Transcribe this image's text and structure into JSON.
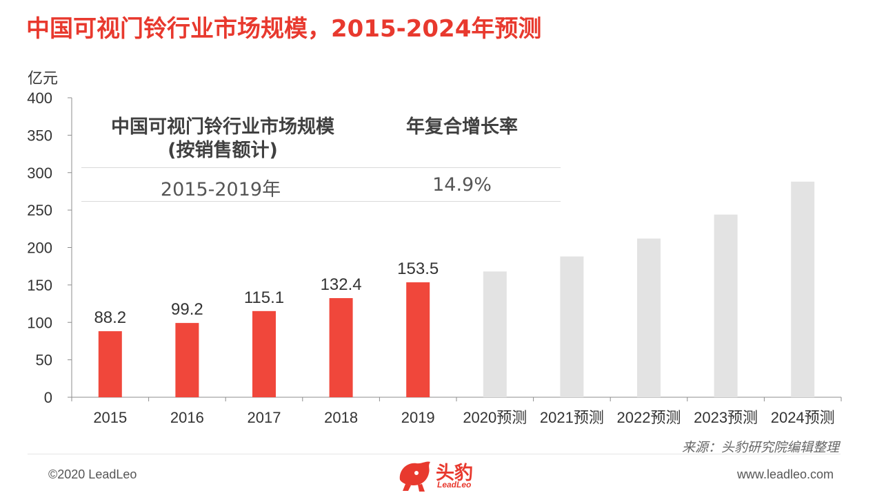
{
  "header": {
    "title": "中国可视门铃行业市场规模，2015-2024年预测"
  },
  "summary_table": {
    "col1_header_line1": "中国可视门铃行业市场规模",
    "col1_header_line2": "(按销售额计)",
    "col2_header": "年复合增长率",
    "period": "2015-2019年",
    "cagr": "14.9%"
  },
  "chart_data": {
    "type": "bar",
    "ylabel": "亿元",
    "ylim": [
      0,
      400
    ],
    "yticks": [
      0,
      50,
      100,
      150,
      200,
      250,
      300,
      350,
      400
    ],
    "categories": [
      "2015",
      "2016",
      "2017",
      "2018",
      "2019",
      "2020预测",
      "2021预测",
      "2022预测",
      "2023预测",
      "2024预测"
    ],
    "values": [
      88.2,
      99.2,
      115.1,
      132.4,
      153.5,
      168,
      188,
      212,
      244,
      288
    ],
    "data_labels": [
      "88.2",
      "99.2",
      "115.1",
      "132.4",
      "153.5",
      "",
      "",
      "",
      "",
      ""
    ],
    "colors": {
      "actual": "#f0473b",
      "forecast": "#e3e3e3"
    },
    "grid": false,
    "legend": "none"
  },
  "footer": {
    "source": "来源：头豹研究院编辑整理",
    "copyright": "©2020 LeadLeo",
    "website": "www.leadleo.com",
    "logo_cn": "头豹",
    "logo_en": "LeadLeo",
    "brand_color": "#e8392e"
  }
}
